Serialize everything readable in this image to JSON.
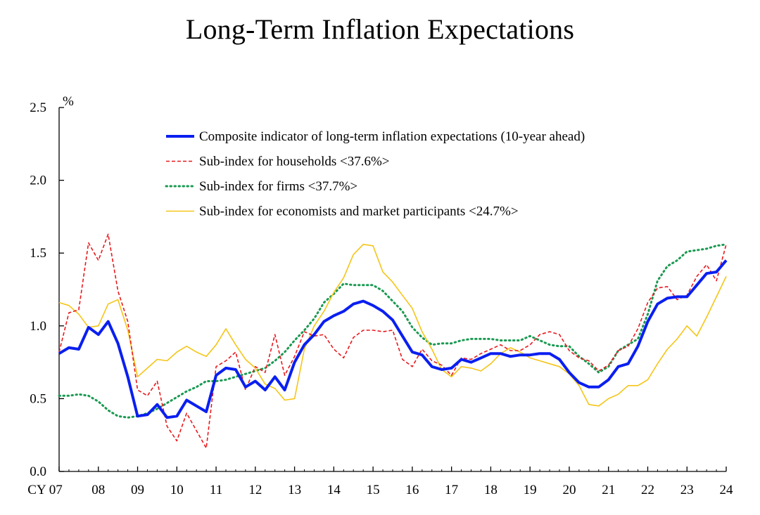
{
  "chart_data": {
    "type": "line",
    "title": "Long-Term Inflation Expectations",
    "ylabel": "%",
    "xlabel": "",
    "ylim": [
      0.0,
      2.5
    ],
    "yticks": [
      "0.0",
      "0.5",
      "1.0",
      "1.5",
      "2.0",
      "2.5"
    ],
    "ytick_values": [
      0.0,
      0.5,
      1.0,
      1.5,
      2.0,
      2.5
    ],
    "xlim": [
      2007.0,
      2024.0
    ],
    "xticks": [
      {
        "label": "CY 07",
        "x": 2007.0
      },
      {
        "label": "08",
        "x": 2008.0
      },
      {
        "label": "09",
        "x": 2009.0
      },
      {
        "label": "10",
        "x": 2010.0
      },
      {
        "label": "11",
        "x": 2011.0
      },
      {
        "label": "12",
        "x": 2012.0
      },
      {
        "label": "13",
        "x": 2013.0
      },
      {
        "label": "14",
        "x": 2014.0
      },
      {
        "label": "15",
        "x": 2015.0
      },
      {
        "label": "16",
        "x": 2016.0
      },
      {
        "label": "17",
        "x": 2017.0
      },
      {
        "label": "18",
        "x": 2018.0
      },
      {
        "label": "19",
        "x": 2019.0
      },
      {
        "label": "20",
        "x": 2020.0
      },
      {
        "label": "21",
        "x": 2021.0
      },
      {
        "label": "22",
        "x": 2022.0
      },
      {
        "label": "23",
        "x": 2023.0
      },
      {
        "label": "24",
        "x": 2024.0
      }
    ],
    "legend_position": "top-right",
    "series": [
      {
        "name": "Composite indicator of long-term inflation expectations (10-year ahead)",
        "color": "#0a1ff0",
        "style": "solid-thick",
        "x": [
          2007.0,
          2007.25,
          2007.5,
          2007.75,
          2008.0,
          2008.25,
          2008.5,
          2008.75,
          2009.0,
          2009.25,
          2009.5,
          2009.75,
          2010.0,
          2010.25,
          2010.5,
          2010.75,
          2011.0,
          2011.25,
          2011.5,
          2011.75,
          2012.0,
          2012.25,
          2012.5,
          2012.75,
          2013.0,
          2013.25,
          2013.5,
          2013.75,
          2014.0,
          2014.25,
          2014.5,
          2014.75,
          2015.0,
          2015.25,
          2015.5,
          2015.75,
          2016.0,
          2016.25,
          2016.5,
          2016.75,
          2017.0,
          2017.25,
          2017.5,
          2017.75,
          2018.0,
          2018.25,
          2018.5,
          2018.75,
          2019.0,
          2019.25,
          2019.5,
          2019.75,
          2020.0,
          2020.25,
          2020.5,
          2020.75,
          2021.0,
          2021.25,
          2021.5,
          2021.75,
          2022.0,
          2022.25,
          2022.5,
          2022.75,
          2023.0,
          2023.25,
          2023.5,
          2023.75,
          2024.0
        ],
        "values": [
          0.81,
          0.85,
          0.84,
          0.99,
          0.94,
          1.03,
          0.88,
          0.65,
          0.38,
          0.39,
          0.46,
          0.37,
          0.38,
          0.49,
          0.45,
          0.41,
          0.66,
          0.71,
          0.7,
          0.58,
          0.62,
          0.56,
          0.65,
          0.56,
          0.75,
          0.87,
          0.94,
          1.03,
          1.07,
          1.1,
          1.15,
          1.17,
          1.14,
          1.1,
          1.04,
          0.93,
          0.82,
          0.8,
          0.72,
          0.7,
          0.71,
          0.77,
          0.75,
          0.78,
          0.81,
          0.81,
          0.79,
          0.8,
          0.8,
          0.81,
          0.81,
          0.77,
          0.68,
          0.61,
          0.58,
          0.58,
          0.63,
          0.72,
          0.74,
          0.86,
          1.03,
          1.15,
          1.19,
          1.2,
          1.2,
          1.28,
          1.36,
          1.37,
          1.45
        ]
      },
      {
        "name": "Sub-index for households <37.6%>",
        "color": "#e8191d",
        "style": "dashed",
        "x": [
          2007.0,
          2007.25,
          2007.5,
          2007.75,
          2008.0,
          2008.25,
          2008.5,
          2008.75,
          2009.0,
          2009.25,
          2009.5,
          2009.75,
          2010.0,
          2010.25,
          2010.5,
          2010.75,
          2011.0,
          2011.25,
          2011.5,
          2011.75,
          2012.0,
          2012.25,
          2012.5,
          2012.75,
          2013.0,
          2013.25,
          2013.5,
          2013.75,
          2014.0,
          2014.25,
          2014.5,
          2014.75,
          2015.0,
          2015.25,
          2015.5,
          2015.75,
          2016.0,
          2016.25,
          2016.5,
          2016.75,
          2017.0,
          2017.25,
          2017.5,
          2017.75,
          2018.0,
          2018.25,
          2018.5,
          2018.75,
          2019.0,
          2019.25,
          2019.5,
          2019.75,
          2020.0,
          2020.25,
          2020.5,
          2020.75,
          2021.0,
          2021.25,
          2021.5,
          2021.75,
          2022.0,
          2022.25,
          2022.5,
          2022.75,
          2023.0,
          2023.25,
          2023.5,
          2023.75,
          2024.0
        ],
        "values": [
          0.82,
          1.09,
          1.11,
          1.57,
          1.45,
          1.63,
          1.24,
          1.03,
          0.56,
          0.52,
          0.62,
          0.31,
          0.21,
          0.4,
          0.28,
          0.16,
          0.72,
          0.76,
          0.82,
          0.56,
          0.72,
          0.68,
          0.94,
          0.66,
          0.79,
          0.96,
          0.93,
          0.94,
          0.84,
          0.78,
          0.92,
          0.97,
          0.97,
          0.96,
          0.97,
          0.77,
          0.72,
          0.84,
          0.76,
          0.73,
          0.66,
          0.78,
          0.77,
          0.81,
          0.84,
          0.87,
          0.83,
          0.83,
          0.87,
          0.94,
          0.96,
          0.94,
          0.83,
          0.78,
          0.76,
          0.69,
          0.73,
          0.83,
          0.86,
          0.98,
          1.16,
          1.26,
          1.27,
          1.18,
          1.21,
          1.34,
          1.42,
          1.31,
          1.56
        ]
      },
      {
        "name": "Sub-index for firms <37.7%>",
        "color": "#1a9a52",
        "style": "dotted",
        "x": [
          2007.0,
          2007.25,
          2007.5,
          2007.75,
          2008.0,
          2008.25,
          2008.5,
          2008.75,
          2009.0,
          2009.25,
          2009.5,
          2009.75,
          2010.0,
          2010.25,
          2010.5,
          2010.75,
          2011.0,
          2011.25,
          2011.5,
          2011.75,
          2012.0,
          2012.25,
          2012.5,
          2012.75,
          2013.0,
          2013.25,
          2013.5,
          2013.75,
          2014.0,
          2014.25,
          2014.5,
          2014.75,
          2015.0,
          2015.25,
          2015.5,
          2015.75,
          2016.0,
          2016.25,
          2016.5,
          2016.75,
          2017.0,
          2017.25,
          2017.5,
          2017.75,
          2018.0,
          2018.25,
          2018.5,
          2018.75,
          2019.0,
          2019.25,
          2019.5,
          2019.75,
          2020.0,
          2020.25,
          2020.5,
          2020.75,
          2021.0,
          2021.25,
          2021.5,
          2021.75,
          2022.0,
          2022.25,
          2022.5,
          2022.75,
          2023.0,
          2023.25,
          2023.5,
          2023.75,
          2024.0
        ],
        "values": [
          0.52,
          0.52,
          0.53,
          0.52,
          0.48,
          0.42,
          0.38,
          0.37,
          0.38,
          0.4,
          0.43,
          0.47,
          0.51,
          0.55,
          0.58,
          0.62,
          0.62,
          0.63,
          0.65,
          0.67,
          0.69,
          0.71,
          0.76,
          0.82,
          0.9,
          0.97,
          1.05,
          1.16,
          1.22,
          1.29,
          1.28,
          1.28,
          1.28,
          1.24,
          1.17,
          1.1,
          0.99,
          0.92,
          0.87,
          0.88,
          0.88,
          0.9,
          0.91,
          0.91,
          0.91,
          0.9,
          0.9,
          0.9,
          0.93,
          0.9,
          0.87,
          0.86,
          0.86,
          0.79,
          0.74,
          0.68,
          0.72,
          0.83,
          0.87,
          0.91,
          1.08,
          1.31,
          1.41,
          1.45,
          1.51,
          1.52,
          1.53,
          1.55,
          1.56
        ]
      },
      {
        "name": "Sub-index for economists and market participants <24.7%>",
        "color": "#f5c518",
        "style": "solid-thin",
        "x": [
          2007.0,
          2007.25,
          2007.5,
          2007.75,
          2008.0,
          2008.25,
          2008.5,
          2008.75,
          2009.0,
          2009.25,
          2009.5,
          2009.75,
          2010.0,
          2010.25,
          2010.5,
          2010.75,
          2011.0,
          2011.25,
          2011.5,
          2011.75,
          2012.0,
          2012.25,
          2012.5,
          2012.75,
          2013.0,
          2013.25,
          2013.5,
          2013.75,
          2014.0,
          2014.25,
          2014.5,
          2014.75,
          2015.0,
          2015.25,
          2015.5,
          2015.75,
          2016.0,
          2016.25,
          2016.5,
          2016.75,
          2017.0,
          2017.25,
          2017.5,
          2017.75,
          2018.0,
          2018.25,
          2018.5,
          2018.75,
          2019.0,
          2019.25,
          2019.5,
          2019.75,
          2020.0,
          2020.25,
          2020.5,
          2020.75,
          2021.0,
          2021.25,
          2021.5,
          2021.75,
          2022.0,
          2022.25,
          2022.5,
          2022.75,
          2023.0,
          2023.25,
          2023.5,
          2023.75,
          2024.0
        ],
        "values": [
          1.16,
          1.14,
          1.08,
          0.99,
          1.0,
          1.15,
          1.18,
          0.97,
          0.65,
          0.71,
          0.77,
          0.76,
          0.82,
          0.86,
          0.82,
          0.79,
          0.87,
          0.98,
          0.87,
          0.77,
          0.71,
          0.6,
          0.57,
          0.49,
          0.5,
          0.84,
          1.0,
          1.1,
          1.23,
          1.33,
          1.49,
          1.56,
          1.55,
          1.37,
          1.3,
          1.21,
          1.12,
          0.96,
          0.84,
          0.7,
          0.65,
          0.72,
          0.71,
          0.69,
          0.74,
          0.81,
          0.85,
          0.82,
          0.78,
          0.76,
          0.74,
          0.72,
          0.67,
          0.59,
          0.46,
          0.45,
          0.5,
          0.53,
          0.59,
          0.59,
          0.63,
          0.74,
          0.84,
          0.91,
          1.0,
          0.93,
          1.06,
          1.2,
          1.34
        ]
      }
    ]
  }
}
